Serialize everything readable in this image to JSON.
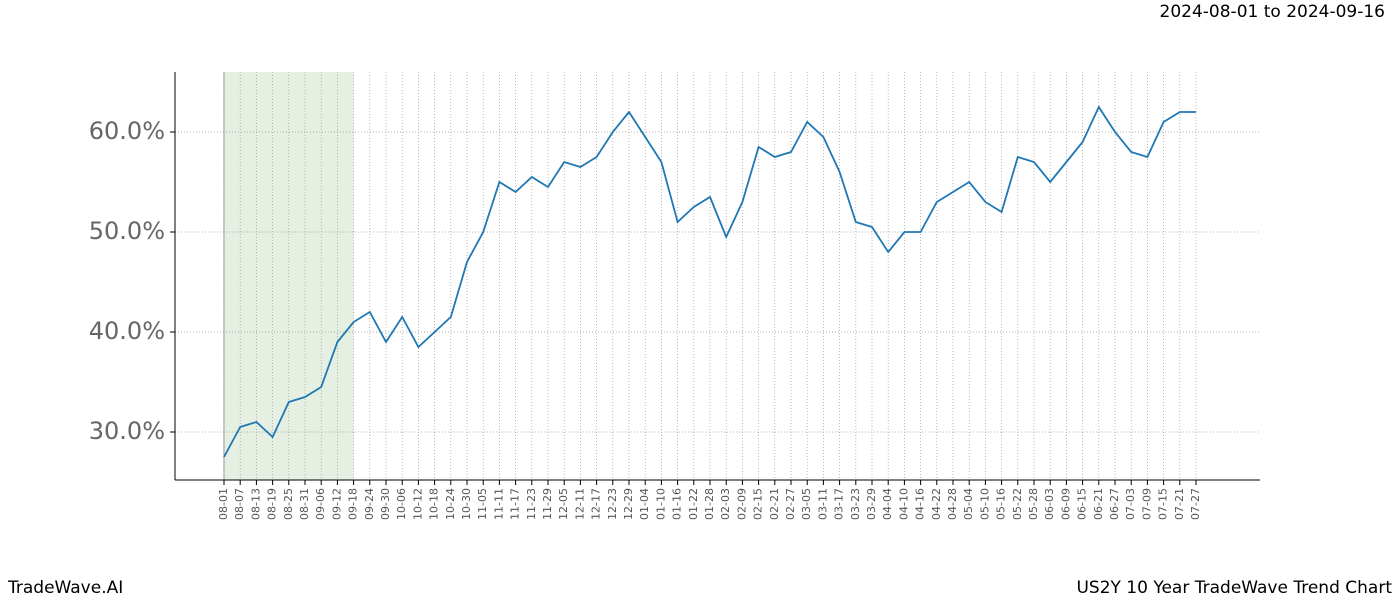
{
  "chart_data": {
    "type": "line",
    "title": "US2Y 10 Year TradeWave Trend Chart",
    "subtitle": "2024-08-01 to 2024-09-16",
    "brand": "TradeWave.AI",
    "categories": [
      "08-01",
      "08-07",
      "08-13",
      "08-19",
      "08-25",
      "08-31",
      "09-06",
      "09-12",
      "09-18",
      "09-24",
      "09-30",
      "10-06",
      "10-12",
      "10-18",
      "10-24",
      "10-30",
      "11-05",
      "11-11",
      "11-17",
      "11-23",
      "11-29",
      "12-05",
      "12-11",
      "12-17",
      "12-23",
      "12-29",
      "01-04",
      "01-10",
      "01-16",
      "01-22",
      "01-28",
      "02-03",
      "02-09",
      "02-15",
      "02-21",
      "02-27",
      "03-05",
      "03-11",
      "03-17",
      "03-23",
      "03-29",
      "04-04",
      "04-10",
      "04-16",
      "04-22",
      "04-28",
      "05-04",
      "05-10",
      "05-16",
      "05-22",
      "05-28",
      "06-03",
      "06-09",
      "06-15",
      "06-21",
      "06-27",
      "07-03",
      "07-09",
      "07-15",
      "07-21",
      "07-27"
    ],
    "series": [
      {
        "name": "US2Y",
        "color": "#1f77b4",
        "values": [
          27.5,
          30.5,
          31,
          29.5,
          33,
          33.5,
          34.5,
          39,
          41,
          42,
          39,
          41.5,
          38.5,
          40,
          41.5,
          47,
          50,
          55,
          54,
          55.5,
          54.5,
          57,
          56.5,
          57.5,
          60,
          62,
          59.5,
          57,
          51,
          52.5,
          53.5,
          49.5,
          53,
          58.5,
          57.5,
          58,
          61,
          59.5,
          56,
          51,
          50.5,
          48,
          50,
          50,
          53,
          54,
          55,
          53,
          52,
          57.5,
          57,
          55,
          57,
          59,
          62.5,
          60,
          58,
          57.5,
          61,
          62,
          62
        ]
      }
    ],
    "highlight": {
      "start": "08-01",
      "end": "09-18",
      "color": "#e5f0e2"
    },
    "ylim": [
      25.2,
      66
    ],
    "yticks": [
      {
        "value": 30,
        "label": "30.0%"
      },
      {
        "value": 40,
        "label": "40.0%"
      },
      {
        "value": 50,
        "label": "50.0%"
      },
      {
        "value": 60,
        "label": "60.0%"
      }
    ],
    "grid": true
  }
}
